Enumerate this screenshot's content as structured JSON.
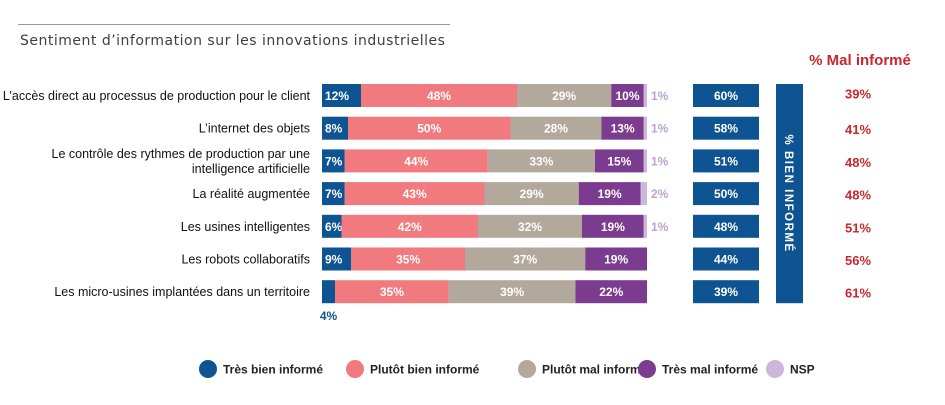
{
  "chart_data": {
    "type": "bar",
    "stacked": true,
    "orientation": "horizontal",
    "title": "Sentiment d’information sur les innovations industrielles",
    "categories": [
      "L’accès direct au processus de production pour le client",
      "L’internet des objets",
      "Le contrôle des rythmes de production par une intelligence artificielle",
      "La réalité augmentée",
      "Les usines intelligentes",
      "Les robots collaboratifs",
      "Les micro-usines implantées dans un territoire"
    ],
    "category_lines": [
      [
        "L’accès direct au processus de production pour le client"
      ],
      [
        "L’internet des objets"
      ],
      [
        "Le contrôle des rythmes de production par une",
        "intelligence artificielle"
      ],
      [
        "La réalité augmentée"
      ],
      [
        "Les usines intelligentes"
      ],
      [
        "Les robots collaboratifs"
      ],
      [
        "Les micro-usines implantées dans un territoire"
      ]
    ],
    "series": [
      {
        "name": "Très bien informé",
        "color": "#0e5392",
        "values": [
          12,
          8,
          7,
          7,
          6,
          9,
          4
        ]
      },
      {
        "name": "Plutôt bien informé",
        "color": "#f07a7e",
        "values": [
          48,
          50,
          44,
          43,
          42,
          35,
          35
        ]
      },
      {
        "name": "Plutôt mal informé",
        "color": "#b3a89c",
        "values": [
          29,
          28,
          33,
          29,
          32,
          37,
          39
        ]
      },
      {
        "name": "Très mal informé",
        "color": "#7b3b8e",
        "values": [
          10,
          13,
          15,
          19,
          19,
          19,
          22
        ]
      },
      {
        "name": "NSP",
        "color": "#cbb7dc",
        "values": [
          1,
          1,
          1,
          2,
          1,
          null,
          null
        ]
      }
    ],
    "value_labels": [
      [
        "12%",
        "48%",
        "29%",
        "10%",
        "1%"
      ],
      [
        "8%",
        "50%",
        "28%",
        "13%",
        "1%"
      ],
      [
        "7%",
        "44%",
        "33%",
        "15%",
        "1%"
      ],
      [
        "7%",
        "43%",
        "29%",
        "19%",
        "2%"
      ],
      [
        "6%",
        "42%",
        "32%",
        "19%",
        "1%"
      ],
      [
        "9%",
        "35%",
        "37%",
        "19%",
        ""
      ],
      [
        "4%",
        "35%",
        "39%",
        "22%",
        ""
      ]
    ],
    "bien_informe": {
      "label": "% BIEN INFORMÉ",
      "color": "#0e5392",
      "values": [
        60,
        58,
        51,
        50,
        48,
        44,
        39
      ],
      "labels": [
        "60%",
        "58%",
        "51%",
        "50%",
        "48%",
        "44%",
        "39%"
      ]
    },
    "mal_informe": {
      "label": "% Mal informé",
      "color": "#c8272d",
      "values": [
        39,
        41,
        48,
        48,
        51,
        56,
        61
      ],
      "labels": [
        "39%",
        "41%",
        "48%",
        "48%",
        "51%",
        "56%",
        "61%"
      ]
    },
    "legend": {
      "placement": "bottom",
      "items": [
        "Très bien informé",
        "Plutôt bien informé",
        "Plutôt mal informé",
        "Très mal informé",
        "NSP"
      ]
    }
  }
}
